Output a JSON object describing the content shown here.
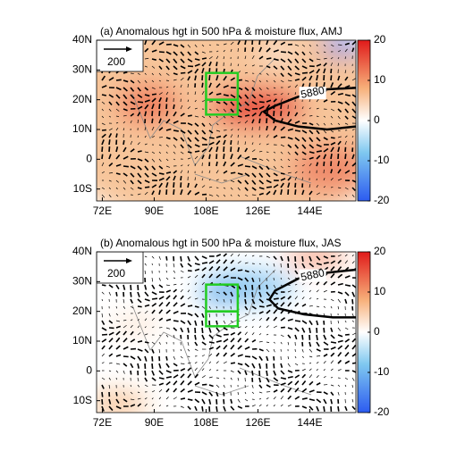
{
  "chart_data": [
    {
      "type": "map",
      "title": "(a) Anomalous hgt in 500 hPa & moisture flux, AMJ",
      "xlim": [
        70,
        160
      ],
      "ylim": [
        -14,
        40
      ],
      "xticks": [
        {
          "value": 72,
          "label": "72E"
        },
        {
          "value": 90,
          "label": "90E"
        },
        {
          "value": 108,
          "label": "108E"
        },
        {
          "value": 126,
          "label": "126E"
        },
        {
          "value": 144,
          "label": "144E"
        }
      ],
      "yticks": [
        {
          "value": 40,
          "label": "40N"
        },
        {
          "value": 30,
          "label": "30N"
        },
        {
          "value": 20,
          "label": "20N"
        },
        {
          "value": 10,
          "label": "10N"
        },
        0,
        {
          "value": -10,
          "label": "10S"
        }
      ],
      "colorbar": {
        "lim": [
          -20,
          20
        ],
        "ticks": [
          20,
          10,
          0,
          -10,
          -20
        ]
      },
      "reference_vector": "200",
      "contour": {
        "label": "5880",
        "lon": [
          160,
          150,
          140,
          132,
          128,
          132,
          140,
          150,
          160
        ],
        "lat": [
          24,
          23.5,
          21,
          18,
          16,
          13,
          11,
          10,
          11
        ]
      },
      "boxes": [
        {
          "lon": [
            108,
            119
          ],
          "lat": [
            20,
            29
          ]
        },
        {
          "lon": [
            108,
            119
          ],
          "lat": [
            15,
            20
          ]
        }
      ]
    },
    {
      "type": "map",
      "title": "(b) Anomalous hgt in 500 hPa & moisture flux, JAS",
      "xlim": [
        70,
        160
      ],
      "ylim": [
        -14,
        40
      ],
      "xticks": [
        {
          "value": 72,
          "label": "72E"
        },
        {
          "value": 90,
          "label": "90E"
        },
        {
          "value": 108,
          "label": "108E"
        },
        {
          "value": 126,
          "label": "126E"
        },
        {
          "value": 144,
          "label": "144E"
        }
      ],
      "yticks": [
        {
          "value": 40,
          "label": "40N"
        },
        {
          "value": 30,
          "label": "30N"
        },
        {
          "value": 20,
          "label": "20N"
        },
        {
          "value": 10,
          "label": "10N"
        },
        0,
        {
          "value": -10,
          "label": "10S"
        }
      ],
      "colorbar": {
        "lim": [
          -20,
          20
        ],
        "ticks": [
          20,
          10,
          0,
          -10,
          -20
        ]
      },
      "reference_vector": "200",
      "contour": {
        "label": "5880",
        "lon": [
          160,
          150,
          140,
          132,
          130,
          133,
          142,
          152,
          160
        ],
        "lat": [
          34,
          33,
          31,
          27,
          24,
          21,
          19,
          18,
          18
        ]
      },
      "boxes": [
        {
          "lon": [
            108,
            119
          ],
          "lat": [
            20,
            29
          ]
        },
        {
          "lon": [
            108,
            119
          ],
          "lat": [
            15,
            20
          ]
        }
      ]
    }
  ]
}
